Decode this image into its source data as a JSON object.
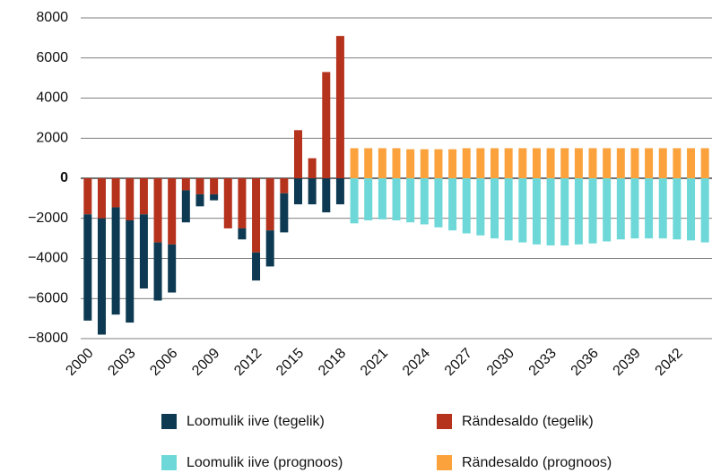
{
  "chart_data": {
    "type": "bar",
    "stacked": true,
    "categories": [
      "2000",
      null,
      null,
      "2003",
      null,
      null,
      "2006",
      null,
      null,
      "2009",
      null,
      null,
      "2012",
      null,
      null,
      "2015",
      null,
      null,
      "2018",
      null,
      null,
      "2021",
      null,
      null,
      "2024",
      null,
      null,
      "2027",
      null,
      null,
      "2030",
      null,
      null,
      "2033",
      null,
      null,
      "2036",
      null,
      null,
      "2039",
      null,
      null,
      "2042",
      null,
      null
    ],
    "series": [
      {
        "name": "Loomulik iive (tegelik)",
        "color": "#0d3a52",
        "values": [
          -5300,
          -5800,
          -5350,
          -5100,
          -3700,
          -2900,
          -2400,
          -1600,
          -600,
          -300,
          0,
          -550,
          -1400,
          -1800,
          -1950,
          -1300,
          -1300,
          -1700,
          -1300,
          null,
          null,
          null,
          null,
          null,
          null,
          null,
          null,
          null,
          null,
          null,
          null,
          null,
          null,
          null,
          null,
          null,
          null,
          null,
          null,
          null,
          null,
          null,
          null,
          null,
          null
        ]
      },
      {
        "name": "Rändesaldo (tegelik)",
        "color": "#b5321c",
        "values": [
          -1800,
          -2000,
          -1450,
          -2100,
          -1800,
          -3200,
          -3300,
          -600,
          -800,
          -800,
          -2500,
          -2500,
          -3700,
          -2600,
          -750,
          2400,
          1000,
          5300,
          7100,
          null,
          null,
          null,
          null,
          null,
          null,
          null,
          null,
          null,
          null,
          null,
          null,
          null,
          null,
          null,
          null,
          null,
          null,
          null,
          null,
          null,
          null,
          null,
          null,
          null,
          null
        ]
      },
      {
        "name": "Loomulik iive (prognoos)",
        "color": "#6ed8d8",
        "values": [
          null,
          null,
          null,
          null,
          null,
          null,
          null,
          null,
          null,
          null,
          null,
          null,
          null,
          null,
          null,
          null,
          null,
          null,
          null,
          -2250,
          -2100,
          -2050,
          -2100,
          -2200,
          -2300,
          -2450,
          -2600,
          -2750,
          -2850,
          -3000,
          -3100,
          -3200,
          -3300,
          -3350,
          -3350,
          -3300,
          -3250,
          -3150,
          -3050,
          -3000,
          -3000,
          -3000,
          -3050,
          -3100,
          -3200
        ]
      },
      {
        "name": "Rändesaldo (prognoos)",
        "color": "#fba23d",
        "values": [
          null,
          null,
          null,
          null,
          null,
          null,
          null,
          null,
          null,
          null,
          null,
          null,
          null,
          null,
          null,
          null,
          null,
          null,
          null,
          1500,
          1500,
          1500,
          1500,
          1450,
          1450,
          1450,
          1450,
          1500,
          1500,
          1500,
          1500,
          1500,
          1500,
          1500,
          1500,
          1500,
          1500,
          1500,
          1500,
          1500,
          1500,
          1500,
          1500,
          1500,
          1500
        ]
      }
    ],
    "ylim": [
      -8000,
      8000
    ],
    "yticks": [
      {
        "value": -8000,
        "label": "−8000"
      },
      {
        "value": -6000,
        "label": "−6000"
      },
      {
        "value": -4000,
        "label": "−4000"
      },
      {
        "value": -2000,
        "label": "−2000"
      },
      0,
      2000,
      4000,
      6000,
      8000
    ],
    "grid": true,
    "legend": "bottom"
  }
}
